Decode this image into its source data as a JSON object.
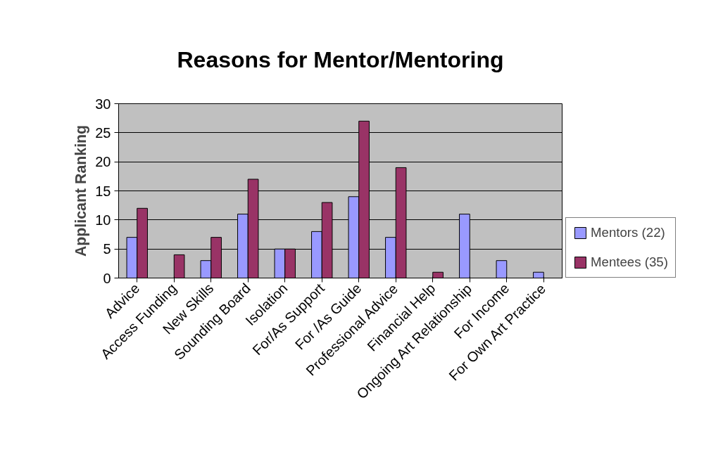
{
  "chart_data": {
    "type": "bar",
    "title": "Reasons for Mentor/Mentoring",
    "ylabel": "Applicant Ranking",
    "categories": [
      "Advice",
      "Access Funding",
      "New Skills",
      "Sounding Board",
      "Isolation",
      "For/As Support",
      "For /As Guide",
      "Professional Advice",
      "Financial Help",
      "Ongoing Art Relationship",
      "For Income",
      "For Own Art Practice"
    ],
    "series": [
      {
        "name": "Mentors (22)",
        "color": "#9999ff",
        "values": [
          7,
          0,
          3,
          11,
          5,
          8,
          14,
          7,
          0,
          11,
          3,
          1
        ]
      },
      {
        "name": "Mentees (35)",
        "color": "#993366",
        "values": [
          12,
          4,
          7,
          17,
          5,
          13,
          27,
          19,
          1,
          0,
          0,
          0
        ]
      }
    ],
    "ylim": [
      0,
      30
    ],
    "yticks": [
      0,
      5,
      10,
      15,
      20,
      25,
      30
    ],
    "grid": "y",
    "legend": "right"
  }
}
